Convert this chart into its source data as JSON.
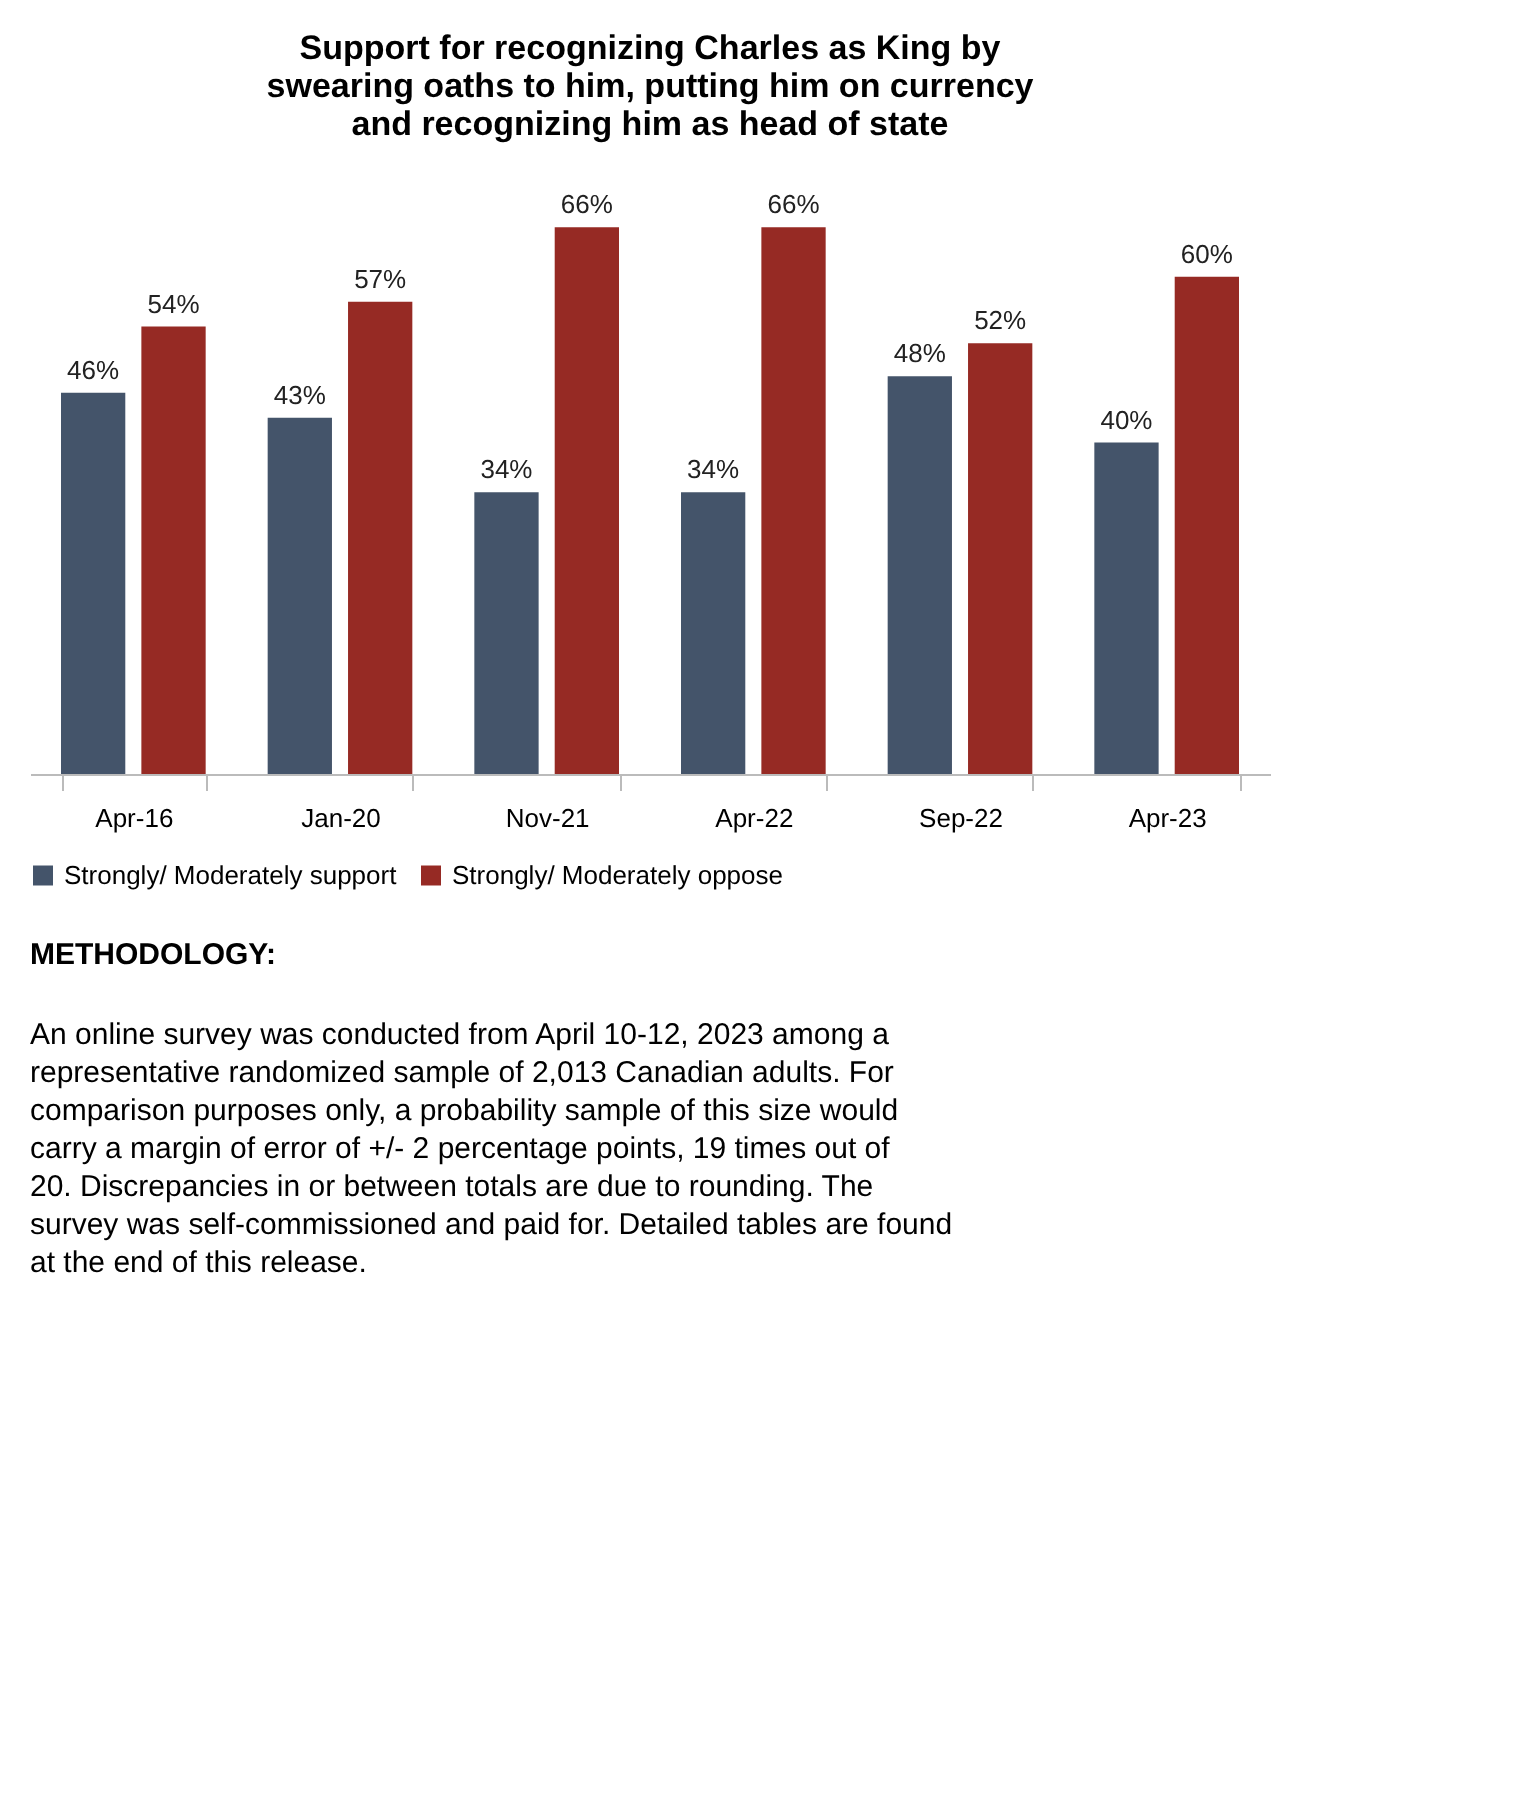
{
  "chart_data": {
    "type": "bar",
    "title": "Support for recognizing Charles as King by swearing oaths to him, putting him on currency and recognizing him as head of state",
    "categories": [
      "Apr-16",
      "Jan-20",
      "Nov-21",
      "Apr-22",
      "Sep-22",
      "Apr-23"
    ],
    "series": [
      {
        "name": "Strongly/ Moderately support",
        "color": "#44546a",
        "values": [
          46,
          43,
          34,
          34,
          48,
          40
        ],
        "value_labels": [
          "46%",
          "43%",
          "34%",
          "34%",
          "48%",
          "40%"
        ]
      },
      {
        "name": "Strongly/ Moderately oppose",
        "color": "#962a24",
        "values": [
          54,
          57,
          66,
          66,
          52,
          60
        ],
        "value_labels": [
          "54%",
          "57%",
          "66%",
          "66%",
          "52%",
          "60%"
        ]
      }
    ],
    "legend": "bottom",
    "grid": false,
    "annotations": [
      "METHODOLOGY:",
      "An online survey was conducted from April 10-12, 2023 among a representative randomized sample of 2,013 Canadian adults. For comparison purposes only, a probability sample of this size would carry a margin of error of +/- 2 percentage points, 19 times out of 20. Discrepancies in or between totals are due to rounding. The survey was self-commissioned and paid for. Detailed tables are found at the end of this release."
    ]
  }
}
